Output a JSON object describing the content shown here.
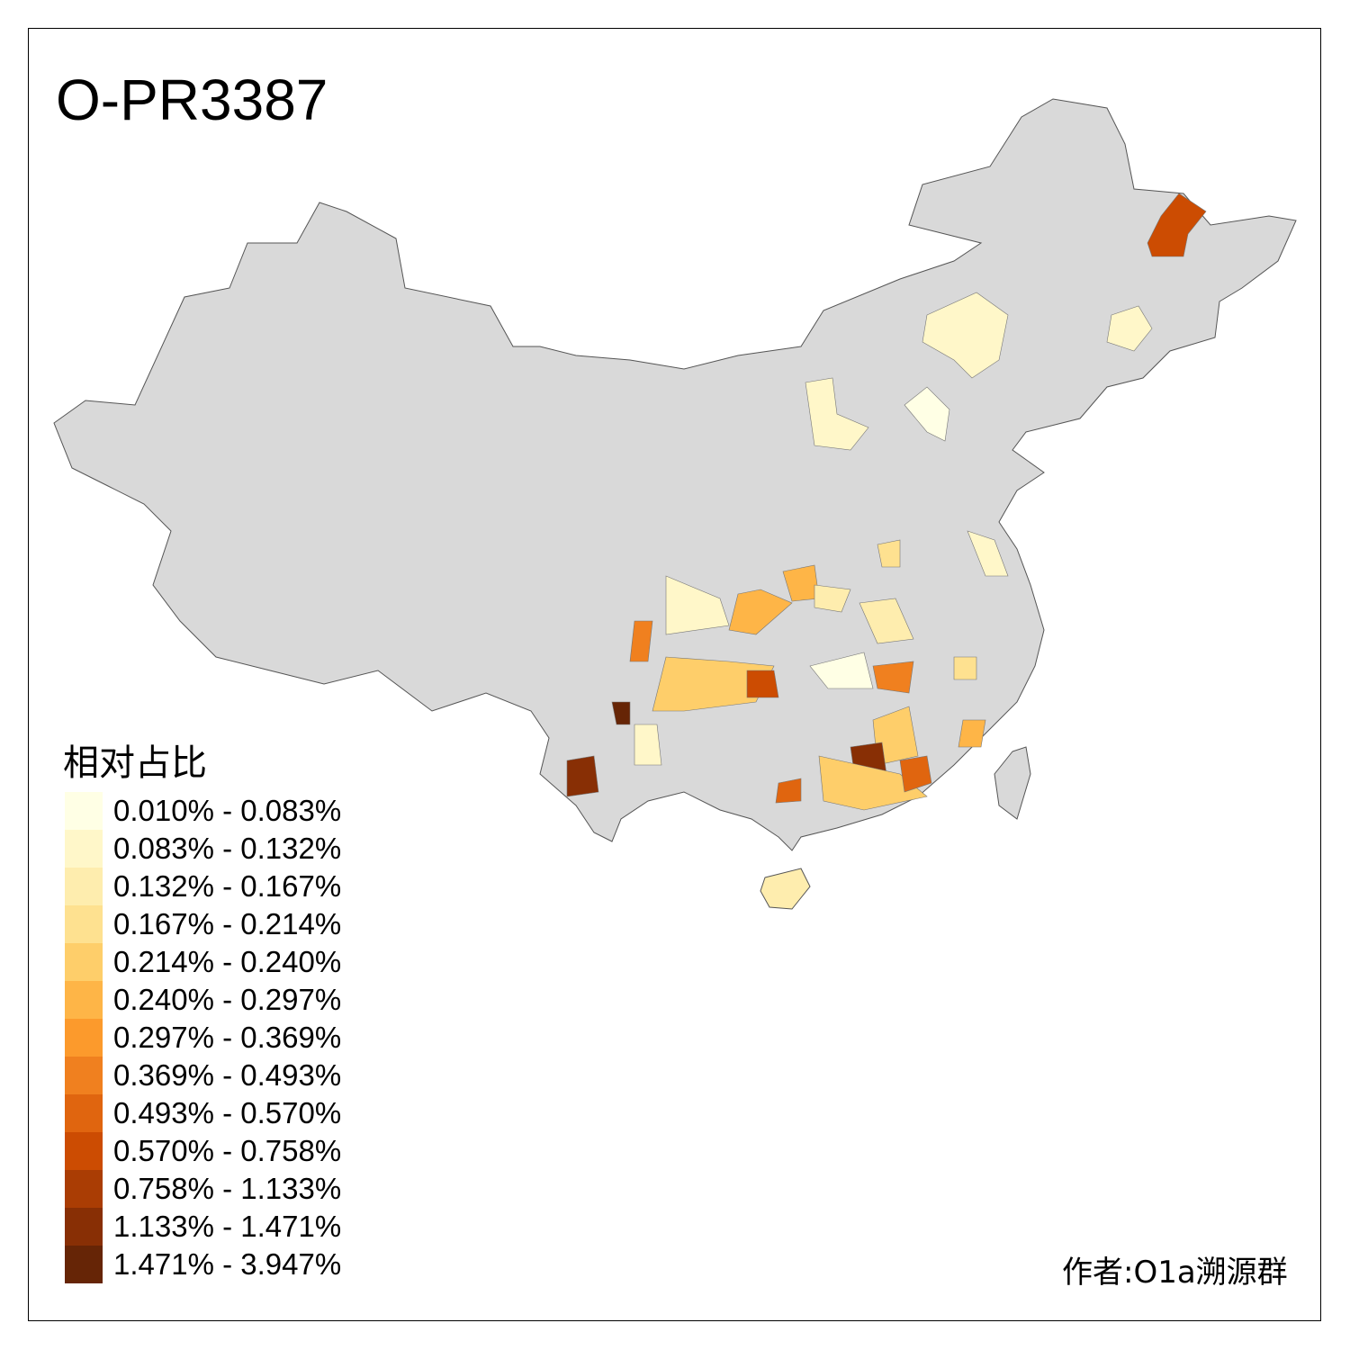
{
  "title": "O-PR3387",
  "legend": {
    "title": "相对占比",
    "items": [
      {
        "label": "0.010% - 0.083%",
        "color": "#FFFFE5"
      },
      {
        "label": "0.083% - 0.132%",
        "color": "#FFF7C9"
      },
      {
        "label": "0.132% - 0.167%",
        "color": "#FEEDAE"
      },
      {
        "label": "0.167% - 0.214%",
        "color": "#FEE190"
      },
      {
        "label": "0.214% - 0.240%",
        "color": "#FECE6A"
      },
      {
        "label": "0.240% - 0.297%",
        "color": "#FEB547"
      },
      {
        "label": "0.297% - 0.369%",
        "color": "#FC9A2C"
      },
      {
        "label": "0.369% - 0.493%",
        "color": "#F0801F"
      },
      {
        "label": "0.493% - 0.570%",
        "color": "#E0650F"
      },
      {
        "label": "0.570% - 0.758%",
        "color": "#CC4C02"
      },
      {
        "label": "0.758% - 1.133%",
        "color": "#AA3D04"
      },
      {
        "label": "1.133% - 1.471%",
        "color": "#882F05"
      },
      {
        "label": "1.471% - 3.947%",
        "color": "#662506"
      }
    ]
  },
  "author": "作者:O1a溯源群",
  "map_colors": {
    "base": "#D9D9D9",
    "outline": "#555555"
  }
}
